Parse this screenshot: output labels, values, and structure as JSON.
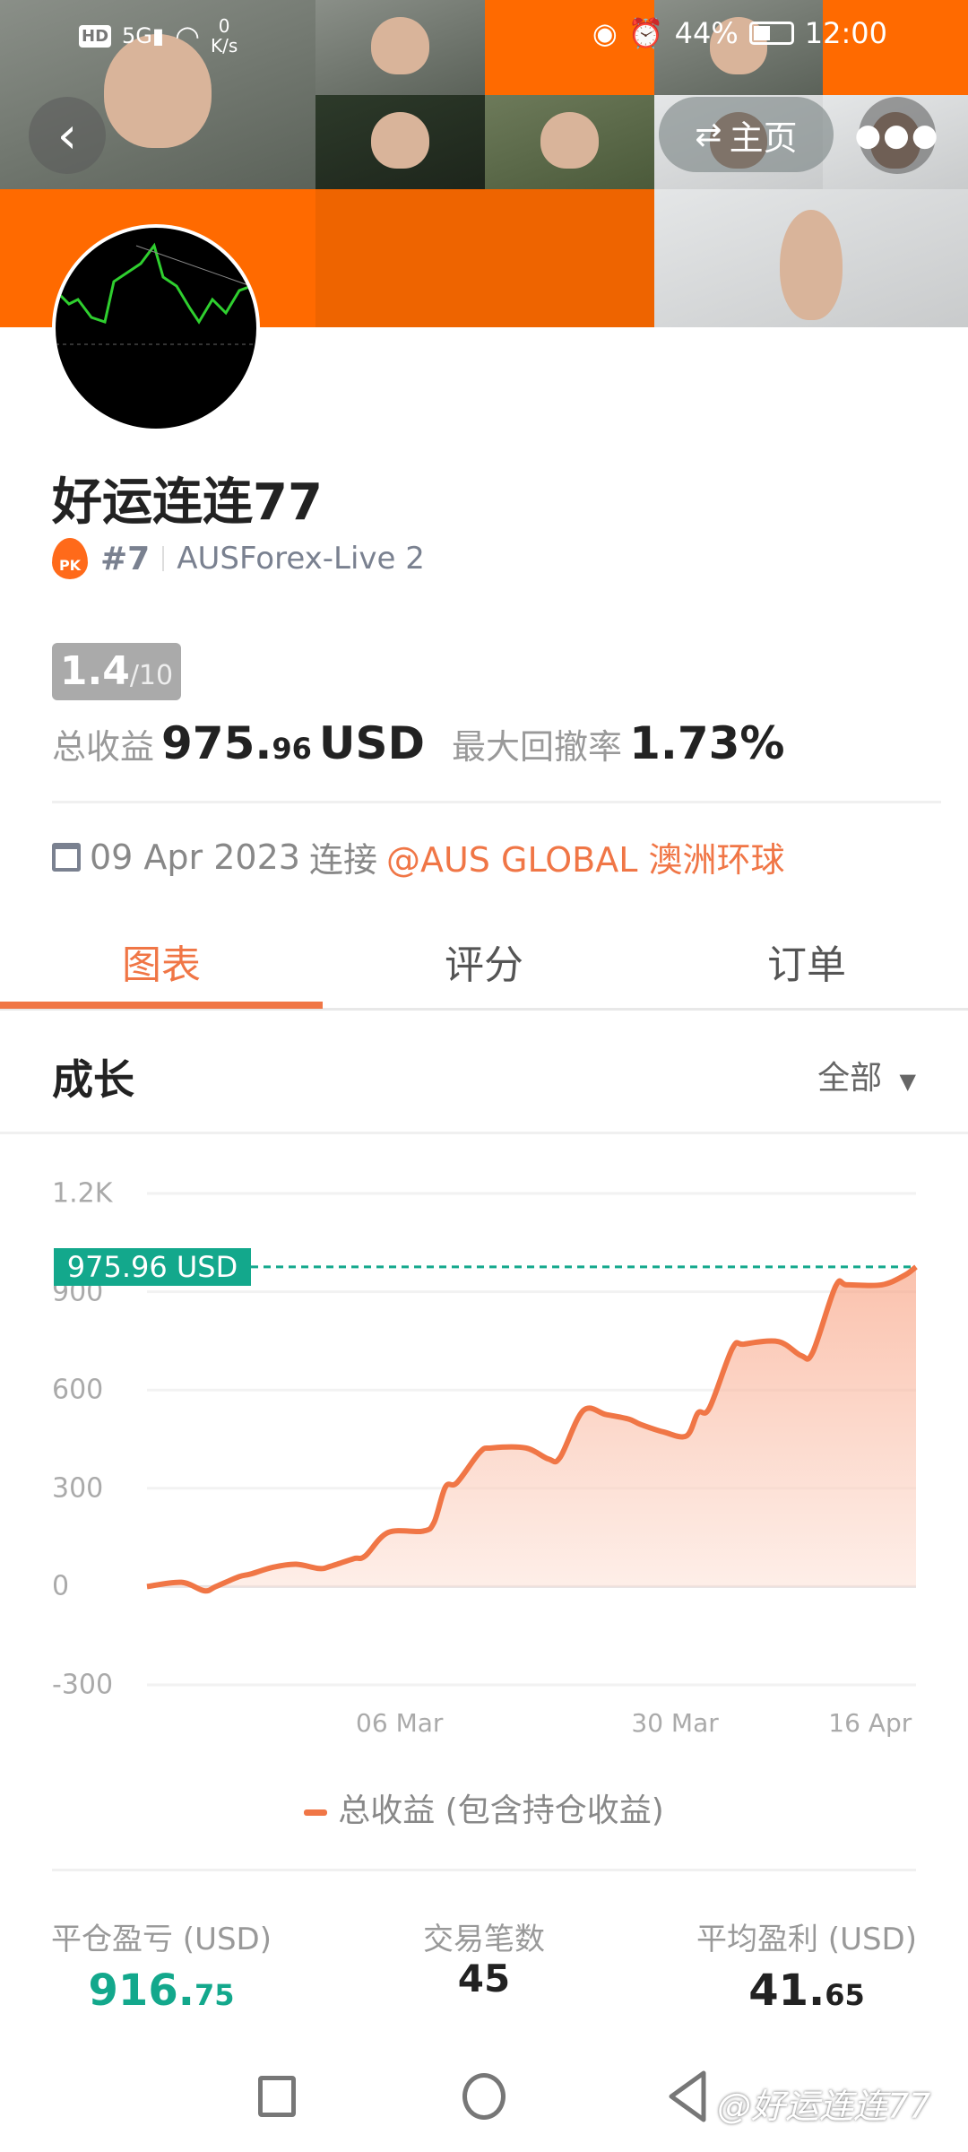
{
  "status_bar": {
    "left_icons": [
      "hd-icon",
      "5g-signal-icon",
      "wifi-icon"
    ],
    "net_speed": "0",
    "net_unit": "K/s",
    "battery": "44%",
    "time": "12:00",
    "right_icons": [
      "eye-icon",
      "alarm-icon",
      "battery-icon"
    ]
  },
  "header": {
    "back_icon": "chevron-left-icon",
    "home_label": "主页",
    "home_icon": "swap-icon",
    "more_icon": "more-dots-icon"
  },
  "profile": {
    "name": "好运连连77",
    "rank": "#7",
    "server": "AUSForex-Live 2",
    "score": "1.4",
    "score_max": "/10",
    "total_profit_label": "总收益",
    "total_profit_int": "975.",
    "total_profit_dec": "96",
    "total_profit_unit": "USD",
    "max_drawdown_label": "最大回撤率",
    "max_drawdown": "1.73%",
    "date": "09 Apr 2023",
    "connect_label": "连接",
    "broker": "@AUS GLOBAL 澳洲环球"
  },
  "tabs": [
    {
      "label": "图表",
      "active": true
    },
    {
      "label": "评分",
      "active": false
    },
    {
      "label": "订单",
      "active": false
    }
  ],
  "section": {
    "title": "成长",
    "filter": "全部"
  },
  "colors": {
    "accent": "#f07646",
    "teal": "#13a88c",
    "banner": "#ff6a00"
  },
  "chart_data": {
    "type": "area",
    "ylim": [
      -300,
      1200
    ],
    "yticks": [
      "1.2K",
      "900",
      "600",
      "300",
      "0",
      "-300"
    ],
    "ytick_values": [
      1200,
      900,
      600,
      300,
      0,
      -300
    ],
    "xlim": [
      "2023-02-12",
      "2023-04-20"
    ],
    "xticks": [
      {
        "label": "06 Mar",
        "date": "2023-03-06"
      },
      {
        "label": "30 Mar",
        "date": "2023-03-30"
      },
      {
        "label": "16 Apr",
        "date": "2023-04-16"
      }
    ],
    "current_label": "975.96 USD",
    "current_value": 975.96,
    "grid": true,
    "legend": "bottom",
    "series": [
      {
        "name": "总收益 (包含持仓收益)",
        "points": [
          [
            "2023-02-12",
            0
          ],
          [
            "2023-02-15",
            13
          ],
          [
            "2023-02-17",
            -13
          ],
          [
            "2023-02-18",
            0
          ],
          [
            "2023-02-20",
            30
          ],
          [
            "2023-02-21",
            38
          ],
          [
            "2023-02-23",
            59
          ],
          [
            "2023-02-25",
            68
          ],
          [
            "2023-02-27",
            55
          ],
          [
            "2023-02-28",
            62
          ],
          [
            "2023-03-02",
            85
          ],
          [
            "2023-03-03",
            93
          ],
          [
            "2023-03-05",
            165
          ],
          [
            "2023-03-08",
            169
          ],
          [
            "2023-03-09",
            195
          ],
          [
            "2023-03-10",
            304
          ],
          [
            "2023-03-11",
            317
          ],
          [
            "2023-03-13",
            410
          ],
          [
            "2023-03-14",
            423
          ],
          [
            "2023-03-17",
            423
          ],
          [
            "2023-03-19",
            389
          ],
          [
            "2023-03-20",
            395
          ],
          [
            "2023-03-22",
            537
          ],
          [
            "2023-03-24",
            525
          ],
          [
            "2023-03-26",
            511
          ],
          [
            "2023-03-27",
            495
          ],
          [
            "2023-03-29",
            472
          ],
          [
            "2023-03-31",
            460
          ],
          [
            "2023-04-01",
            530
          ],
          [
            "2023-04-02",
            545
          ],
          [
            "2023-04-04",
            727
          ],
          [
            "2023-04-05",
            740
          ],
          [
            "2023-04-08",
            748
          ],
          [
            "2023-04-10",
            705
          ],
          [
            "2023-04-11",
            715
          ],
          [
            "2023-04-13",
            917
          ],
          [
            "2023-04-14",
            921
          ],
          [
            "2023-04-17",
            921
          ],
          [
            "2023-04-19",
            950
          ],
          [
            "2023-04-20",
            975.96
          ]
        ]
      }
    ]
  },
  "summary": [
    {
      "label": "平仓盈亏 (USD)",
      "int": "916.",
      "dec": "75",
      "color": "#13a88c"
    },
    {
      "label": "交易笔数",
      "int": "45",
      "dec": "",
      "color": "#222222"
    },
    {
      "label": "平均盈利 (USD)",
      "int": "41.",
      "dec": "65",
      "color": "#222222"
    }
  ],
  "watermark": "@好运连连77",
  "nav_icons": [
    "recents-square-icon",
    "home-circle-icon",
    "back-triangle-icon"
  ]
}
